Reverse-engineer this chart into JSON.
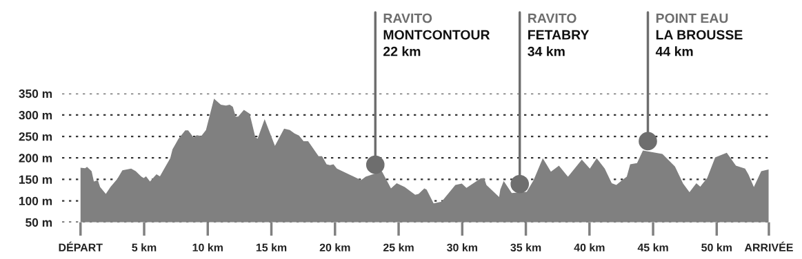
{
  "chart_data": {
    "type": "area",
    "x": [
      0,
      0.36,
      0.51,
      0.87,
      1.05,
      1.36,
      1.54,
      1.99,
      2.35,
      2.89,
      3.29,
      3.98,
      4.34,
      4.79,
      4.97,
      5.15,
      5.46,
      5.97,
      6.24,
      6.6,
      7.05,
      7.23,
      7.69,
      8.23,
      8.46,
      8.9,
      9.13,
      9.49,
      9.86,
      10.49,
      11.03,
      11.43,
      11.72,
      11.97,
      12.2,
      12.39,
      12.84,
      13.29,
      13.74,
      13.92,
      14.47,
      15.28,
      16.0,
      16.45,
      16.82,
      17.17,
      17.53,
      17.89,
      18.71,
      18.98,
      19.34,
      19.61,
      19.88,
      20.15,
      22.05,
      22.41,
      23.68,
      24.4,
      24.85,
      25.48,
      26.3,
      26.57,
      27.02,
      27.2,
      27.75,
      28.38,
      29.46,
      29.97,
      30.33,
      31.45,
      31.72,
      31.9,
      32.9,
      32.99,
      33.26,
      33.89,
      35.07,
      35.61,
      36.33,
      36.97,
      37.6,
      38.31,
      39.4,
      40.03,
      40.57,
      41.2,
      41.75,
      42.11,
      42.57,
      42.93,
      43.2,
      43.74,
      44.2,
      45.73,
      46.72,
      47.36,
      47.86,
      48.4,
      48.71,
      49.25,
      49.88,
      50.79,
      51.51,
      52.23,
      52.5,
      52.92,
      53.5,
      54.08
    ],
    "values": [
      177,
      176,
      179,
      169,
      145,
      148,
      132,
      116,
      132,
      151,
      171,
      175,
      169,
      156,
      153,
      157,
      145,
      162,
      157,
      176,
      199,
      220,
      244,
      264,
      264,
      247,
      253,
      251,
      265,
      338,
      324,
      322,
      324,
      319,
      296,
      296,
      312,
      303,
      248,
      245,
      290,
      228,
      268,
      265,
      257,
      252,
      239,
      239,
      204,
      204,
      185,
      183,
      185,
      175,
      148,
      156,
      169,
      129,
      141,
      132,
      114,
      116,
      129,
      126,
      94,
      98,
      137,
      140,
      130,
      152,
      153,
      137,
      109,
      126,
      146,
      118,
      121,
      148,
      199,
      168,
      182,
      156,
      196,
      175,
      199,
      175,
      141,
      137,
      148,
      156,
      185,
      188,
      217,
      209,
      180,
      140,
      120,
      141,
      133,
      153,
      201,
      212,
      182,
      175,
      161,
      132,
      169,
      173
    ],
    "color": "#808080",
    "xlim": [
      -1.45,
      54.1
    ],
    "xticks": [
      {
        "value": 0,
        "label": "DÉPART"
      },
      {
        "value": 5,
        "label": "5 km"
      },
      {
        "value": 10,
        "label": "10 km"
      },
      {
        "value": 15,
        "label": "15 km"
      },
      {
        "value": 20,
        "label": "20 km"
      },
      {
        "value": 25,
        "label": "25 km"
      },
      {
        "value": 30,
        "label": "30 km"
      },
      {
        "value": 35,
        "label": "35 km"
      },
      {
        "value": 40,
        "label": "40 km"
      },
      {
        "value": 45,
        "label": "45 km"
      },
      {
        "value": 50,
        "label": "50 km"
      },
      {
        "value": 54.1,
        "label": "ARRIVÉE"
      }
    ],
    "ylim": [
      50,
      350
    ],
    "yticks": [
      {
        "value": 50,
        "label": "50 m"
      },
      {
        "value": 100,
        "label": "100 m"
      },
      {
        "value": 150,
        "label": "150 m"
      },
      {
        "value": 200,
        "label": "200 m"
      },
      {
        "value": 250,
        "label": "250 m"
      },
      {
        "value": 300,
        "label": "300 m"
      },
      {
        "value": 350,
        "label": "350 m"
      }
    ],
    "grid": "y",
    "annotations": [
      {
        "text": "RAVITO\nMONTCONTOUR\n22 km",
        "x": 23.17,
        "y": 184
      },
      {
        "text": "RAVITO\nFETABRY\n34 km",
        "x": 34.52,
        "y": 139
      },
      {
        "text": "POINT EAU\nLA BROUSSE\n44 km",
        "x": 44.59,
        "y": 239
      }
    ]
  }
}
